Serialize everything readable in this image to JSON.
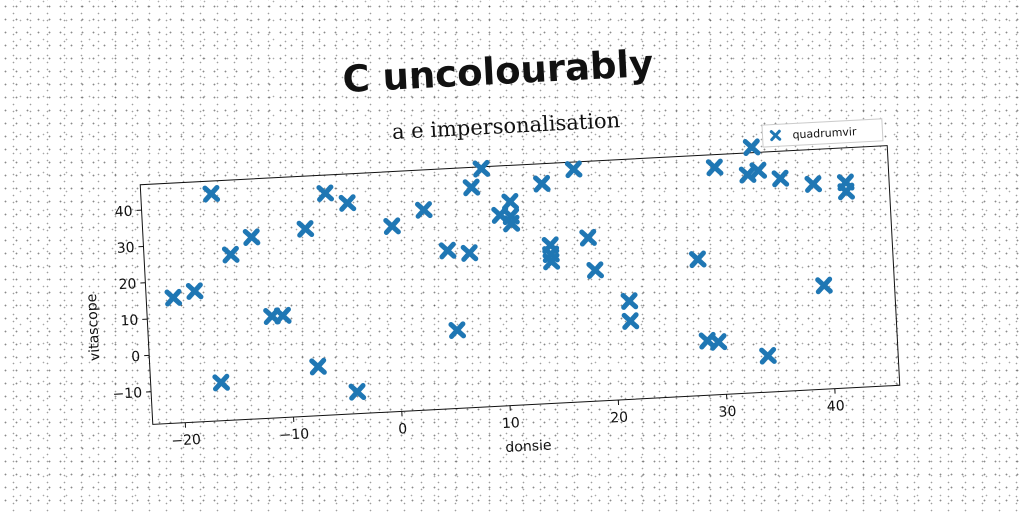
{
  "chart_data": {
    "type": "scatter",
    "title": "C uncolourably",
    "subtitle": "a e impersonalisation",
    "xlabel": "donsie",
    "ylabel": "vitascope",
    "xlim": [
      -23,
      46
    ],
    "ylim": [
      -19,
      47
    ],
    "xticks": [
      -20,
      -10,
      0,
      10,
      20,
      30,
      40
    ],
    "yticks": [
      -10,
      0,
      10,
      20,
      30,
      40
    ],
    "grid": false,
    "legend_position": "top-right",
    "series": [
      {
        "name": "quadrumvir",
        "color": "#1f77b4",
        "marker": "x",
        "points": [
          [
            -20.5,
            15.5
          ],
          [
            -18.5,
            17
          ],
          [
            -16.5,
            43.5
          ],
          [
            -16.5,
            -8.5
          ],
          [
            -15,
            26.5
          ],
          [
            -13,
            31
          ],
          [
            -11.5,
            9
          ],
          [
            -10.5,
            9
          ],
          [
            -8,
            32.5
          ],
          [
            -7.5,
            -5.5
          ],
          [
            -6,
            42
          ],
          [
            -4,
            -13
          ],
          [
            -4,
            39
          ],
          [
            0,
            32
          ],
          [
            3,
            36
          ],
          [
            5,
            24.5
          ],
          [
            5.5,
            2.5
          ],
          [
            7,
            23.5
          ],
          [
            7.5,
            41.5
          ],
          [
            8.5,
            46.5
          ],
          [
            10,
            33.5
          ],
          [
            11,
            37
          ],
          [
            11,
            33
          ],
          [
            11,
            31
          ],
          [
            14,
            41.5
          ],
          [
            14.5,
            24.5
          ],
          [
            14.5,
            22
          ],
          [
            14.5,
            20
          ],
          [
            17,
            45
          ],
          [
            18,
            26
          ],
          [
            18.5,
            17
          ],
          [
            21.5,
            8
          ],
          [
            21.5,
            2.5
          ],
          [
            28,
            18.5
          ],
          [
            28.5,
            -4
          ],
          [
            29.5,
            -4.5
          ],
          [
            30,
            43.5
          ],
          [
            33,
            41
          ],
          [
            33.5,
            48.5
          ],
          [
            34,
            42
          ],
          [
            34,
            -9
          ],
          [
            36,
            39.5
          ],
          [
            39,
            37.5
          ],
          [
            39.5,
            9.5
          ],
          [
            42,
            37.5
          ],
          [
            42,
            35
          ]
        ]
      }
    ]
  }
}
